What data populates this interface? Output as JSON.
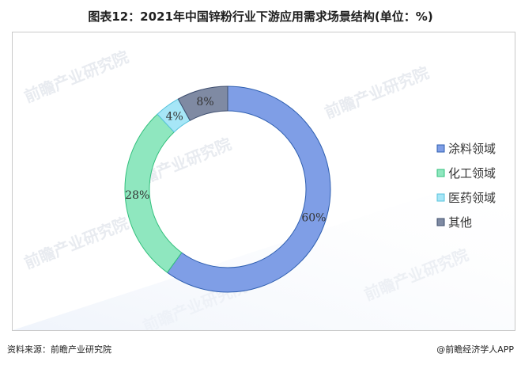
{
  "title": "图表12：2021年中国锌粉行业下游应用需求场景结构(单位：%)",
  "footer": {
    "source": "资料来源：前瞻产业研究院",
    "brand": "@前瞻经济学人APP"
  },
  "watermark": "前瞻产业研究院",
  "chart_data": {
    "type": "pie",
    "donut": true,
    "title": "",
    "unit": "%",
    "legend_position": "right",
    "categories": [
      "涂料领域",
      "化工领域",
      "医药领域",
      "其他"
    ],
    "values": [
      60,
      28,
      4,
      8
    ],
    "labels": [
      "60%",
      "28%",
      "4%",
      "8%"
    ],
    "colors": [
      "#7f9ee6",
      "#8fe7bf",
      "#a6e6f7",
      "#7f8aa3"
    ],
    "edge_colors": [
      "#2f5fb0",
      "#33c07d",
      "#58c3dc",
      "#3d4d6e"
    ]
  }
}
